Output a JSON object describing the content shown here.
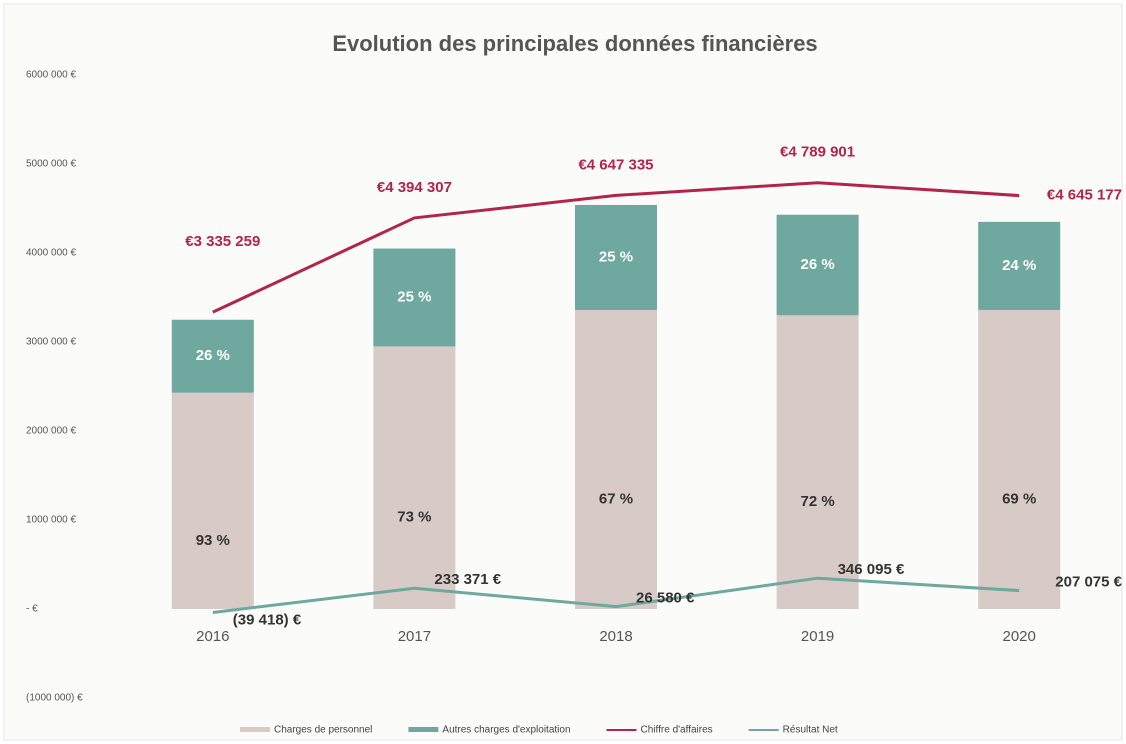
{
  "chart_data": {
    "type": "bar-line",
    "title": "Evolution  des principales données financières",
    "categories": [
      "2016",
      "2017",
      "2018",
      "2019",
      "2020"
    ],
    "ylim": [
      -1000000,
      6000000
    ],
    "yticks": [
      {
        "value": 6000000,
        "label": "6000 000 €"
      },
      {
        "value": 5000000,
        "label": "5000 000 €"
      },
      {
        "value": 4000000,
        "label": "4000 000 €"
      },
      {
        "value": 3000000,
        "label": "3000 000 €"
      },
      {
        "value": 2000000,
        "label": "2000 000 €"
      },
      {
        "value": 1000000,
        "label": "1000 000 €"
      },
      {
        "value": 0,
        "label": "-  €"
      },
      {
        "value": -1000000,
        "label": "(1000 000) €"
      }
    ],
    "series": [
      {
        "name": "Charges de personnel",
        "kind": "bar",
        "color": "#d8cbc7",
        "values": [
          2430000,
          2950000,
          3360000,
          3300000,
          3360000
        ],
        "segment_labels": [
          "93 %",
          "73 %",
          "67 %",
          "72 %",
          "69 %"
        ]
      },
      {
        "name": "Autres charges d'exploitation",
        "kind": "bar",
        "color": "#6ea89f",
        "values": [
          820000,
          1100000,
          1180000,
          1130000,
          990000
        ],
        "segment_labels": [
          "26 %",
          "25 %",
          "25 %",
          "26 %",
          "24 %"
        ]
      },
      {
        "name": "Chiffre d'affaires",
        "kind": "line",
        "color": "#b3244b",
        "values": [
          3335259,
          4394307,
          4647335,
          4789901,
          4645177
        ],
        "value_labels": [
          "€3 335 259",
          "€4 394 307",
          "€4 647 335",
          "€4 789 901",
          "€4 645 177"
        ]
      },
      {
        "name": "Résultat Net",
        "kind": "line",
        "color": "#6ea89f",
        "values": [
          -39418,
          233371,
          26580,
          346095,
          207075
        ],
        "value_labels": [
          "(39 418) €",
          "233 371  €",
          "26 580  €",
          "346 095  €",
          "207 075  €"
        ]
      }
    ]
  }
}
